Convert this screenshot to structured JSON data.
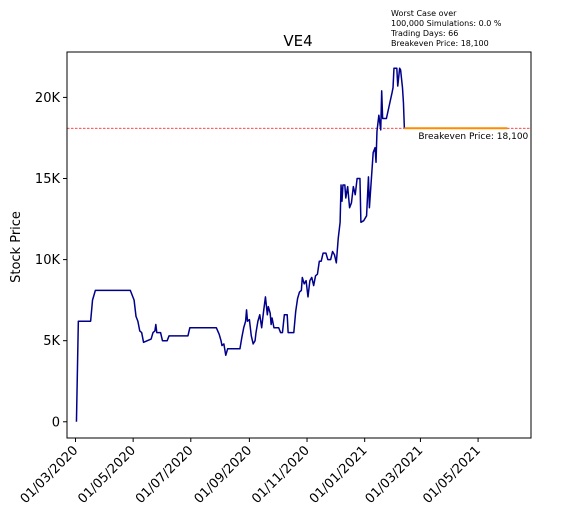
{
  "chart_data": {
    "type": "line",
    "title": "VE4",
    "ylabel": "Stock Price",
    "xlabel": "",
    "x_range": [
      "2020-02-21",
      "2021-06-26"
    ],
    "ylim": [
      -1000,
      22800
    ],
    "y_ticks": [
      {
        "value": 0,
        "label": "0"
      },
      {
        "value": 5000,
        "label": "5K"
      },
      {
        "value": 10000,
        "label": "10K"
      },
      {
        "value": 15000,
        "label": "15K"
      },
      {
        "value": 20000,
        "label": "20K"
      }
    ],
    "x_ticks": [
      {
        "date": "2020-03-01",
        "label": "01/03/2020"
      },
      {
        "date": "2020-05-01",
        "label": "01/05/2020"
      },
      {
        "date": "2020-07-01",
        "label": "01/07/2020"
      },
      {
        "date": "2020-09-01",
        "label": "01/09/2020"
      },
      {
        "date": "2020-11-01",
        "label": "01/11/2020"
      },
      {
        "date": "2021-01-01",
        "label": "01/01/2021"
      },
      {
        "date": "2021-03-01",
        "label": "01/03/2021"
      },
      {
        "date": "2021-05-01",
        "label": "01/05/2021"
      }
    ],
    "grid": false,
    "series": [
      {
        "color": "#00008b",
        "points": [
          [
            "2020-03-02",
            0
          ],
          [
            "2020-03-04",
            6200
          ],
          [
            "2020-03-17",
            6200
          ],
          [
            "2020-03-19",
            7500
          ],
          [
            "2020-03-22",
            8100
          ],
          [
            "2020-04-28",
            8100
          ],
          [
            "2020-05-02",
            7500
          ],
          [
            "2020-05-04",
            6500
          ],
          [
            "2020-05-06",
            6200
          ],
          [
            "2020-05-08",
            5600
          ],
          [
            "2020-05-10",
            5500
          ],
          [
            "2020-05-12",
            4900
          ],
          [
            "2020-05-16",
            5000
          ],
          [
            "2020-05-20",
            5100
          ],
          [
            "2020-05-22",
            5500
          ],
          [
            "2020-05-24",
            5600
          ],
          [
            "2020-05-25",
            6000
          ],
          [
            "2020-05-26",
            5500
          ],
          [
            "2020-05-30",
            5500
          ],
          [
            "2020-06-01",
            5000
          ],
          [
            "2020-06-06",
            5000
          ],
          [
            "2020-06-08",
            5300
          ],
          [
            "2020-06-28",
            5300
          ],
          [
            "2020-06-30",
            5800
          ],
          [
            "2020-07-28",
            5800
          ],
          [
            "2020-07-31",
            5400
          ],
          [
            "2020-08-02",
            5000
          ],
          [
            "2020-08-03",
            4700
          ],
          [
            "2020-08-05",
            4800
          ],
          [
            "2020-08-07",
            4100
          ],
          [
            "2020-08-09",
            4500
          ],
          [
            "2020-08-22",
            4500
          ],
          [
            "2020-08-24",
            5200
          ],
          [
            "2020-08-26",
            5800
          ],
          [
            "2020-08-28",
            6200
          ],
          [
            "2020-08-29",
            6900
          ],
          [
            "2020-08-30",
            6200
          ],
          [
            "2020-09-01",
            6300
          ],
          [
            "2020-09-03",
            5300
          ],
          [
            "2020-09-05",
            4800
          ],
          [
            "2020-09-07",
            5000
          ],
          [
            "2020-09-08",
            5500
          ],
          [
            "2020-09-10",
            6200
          ],
          [
            "2020-09-12",
            6600
          ],
          [
            "2020-09-14",
            5800
          ],
          [
            "2020-09-16",
            6800
          ],
          [
            "2020-09-18",
            7700
          ],
          [
            "2020-09-20",
            6600
          ],
          [
            "2020-09-21",
            7100
          ],
          [
            "2020-09-23",
            6700
          ],
          [
            "2020-09-24",
            6000
          ],
          [
            "2020-09-25",
            6400
          ],
          [
            "2020-09-27",
            5800
          ],
          [
            "2020-10-02",
            5800
          ],
          [
            "2020-10-04",
            5500
          ],
          [
            "2020-10-06",
            5500
          ],
          [
            "2020-10-08",
            6600
          ],
          [
            "2020-10-11",
            6600
          ],
          [
            "2020-10-12",
            5500
          ],
          [
            "2020-10-18",
            5500
          ],
          [
            "2020-10-20",
            6800
          ],
          [
            "2020-10-22",
            7600
          ],
          [
            "2020-10-24",
            8000
          ],
          [
            "2020-10-26",
            8100
          ],
          [
            "2020-10-27",
            8900
          ],
          [
            "2020-10-29",
            8500
          ],
          [
            "2020-10-31",
            8700
          ],
          [
            "2020-11-02",
            7700
          ],
          [
            "2020-11-04",
            8700
          ],
          [
            "2020-11-06",
            8900
          ],
          [
            "2020-11-08",
            8400
          ],
          [
            "2020-11-10",
            9000
          ],
          [
            "2020-11-12",
            9100
          ],
          [
            "2020-11-14",
            9900
          ],
          [
            "2020-11-16",
            9900
          ],
          [
            "2020-11-18",
            10400
          ],
          [
            "2020-11-21",
            10400
          ],
          [
            "2020-11-23",
            10000
          ],
          [
            "2020-11-26",
            10000
          ],
          [
            "2020-11-28",
            10500
          ],
          [
            "2020-11-30",
            10300
          ],
          [
            "2020-12-02",
            9800
          ],
          [
            "2020-12-04",
            11300
          ],
          [
            "2020-12-06",
            12300
          ],
          [
            "2020-12-07",
            14600
          ],
          [
            "2020-12-08",
            13600
          ],
          [
            "2020-12-09",
            14600
          ],
          [
            "2020-12-11",
            14600
          ],
          [
            "2020-12-12",
            13800
          ],
          [
            "2020-12-14",
            14500
          ],
          [
            "2020-12-16",
            13200
          ],
          [
            "2020-12-18",
            13500
          ],
          [
            "2020-12-20",
            14500
          ],
          [
            "2020-12-22",
            14000
          ],
          [
            "2020-12-24",
            15000
          ],
          [
            "2020-12-27",
            15000
          ],
          [
            "2020-12-28",
            12300
          ],
          [
            "2020-12-31",
            12400
          ],
          [
            "2021-01-03",
            12700
          ],
          [
            "2021-01-05",
            15100
          ],
          [
            "2021-01-06",
            13200
          ],
          [
            "2021-01-08",
            14900
          ],
          [
            "2021-01-10",
            16600
          ],
          [
            "2021-01-12",
            16900
          ],
          [
            "2021-01-13",
            16000
          ],
          [
            "2021-01-14",
            17900
          ],
          [
            "2021-01-16",
            18900
          ],
          [
            "2021-01-18",
            18000
          ],
          [
            "2021-01-19",
            20400
          ],
          [
            "2021-01-20",
            18700
          ],
          [
            "2021-01-24",
            18700
          ],
          [
            "2021-01-27",
            19500
          ],
          [
            "2021-01-30",
            20300
          ],
          [
            "2021-01-31",
            20600
          ],
          [
            "2021-02-01",
            21800
          ],
          [
            "2021-02-04",
            21800
          ],
          [
            "2021-02-05",
            20700
          ],
          [
            "2021-02-07",
            21800
          ],
          [
            "2021-02-08",
            21700
          ],
          [
            "2021-02-10",
            20600
          ],
          [
            "2021-02-11",
            19700
          ],
          [
            "2021-02-12",
            18100
          ]
        ]
      },
      {
        "color": "#ff8c00",
        "points": [
          [
            "2021-02-12",
            18100
          ],
          [
            "2021-06-01",
            18100
          ]
        ]
      }
    ],
    "breakeven": {
      "value": 18100,
      "color": "#ff0000",
      "label": "Breakeven Price: 18,100"
    },
    "annotation": [
      "Worst Case over",
      "100,000 Simulations: 0.0 %",
      "Trading Days: 66",
      "Breakeven Price: 18,100"
    ]
  }
}
